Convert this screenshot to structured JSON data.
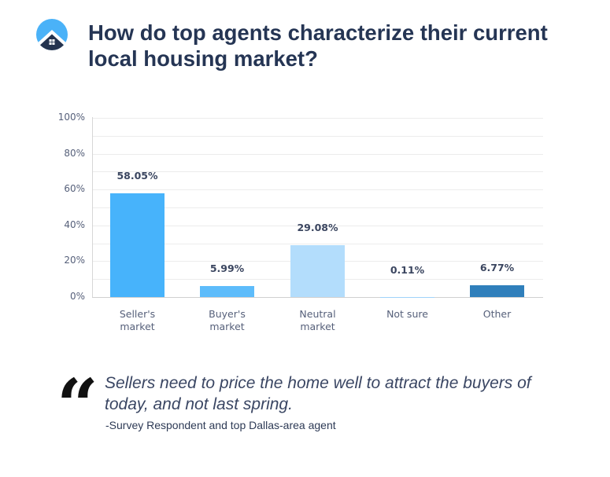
{
  "header": {
    "logo_icon": "house-circle-logo-icon",
    "title": "How do top agents characterize their current local housing market?"
  },
  "colors": {
    "title": "#253554",
    "sellers_bar": "#47b3fb",
    "buyers_bar": "#5dbcfb",
    "neutral_bar": "#b3ddfc",
    "not_sure_bar": "#9fd3fa",
    "other_bar": "#2f7fbb",
    "logo_sky": "#4ab2f8",
    "logo_house": "#24334f"
  },
  "chart_data": {
    "type": "bar",
    "title": "How do top agents characterize their current local housing market?",
    "xlabel": "",
    "ylabel": "",
    "categories": [
      "Seller's market",
      "Buyer's market",
      "Neutral market",
      "Not sure",
      "Other"
    ],
    "values": [
      58.05,
      5.99,
      29.08,
      0.11,
      6.77
    ],
    "value_labels": [
      "58.05%",
      "5.99%",
      "29.08%",
      "0.11%",
      "6.77%"
    ],
    "ylim": [
      0,
      100
    ],
    "yticks": [
      "100%",
      "80%",
      "60%",
      "40%",
      "20%",
      "0%"
    ],
    "ytick_values": [
      100,
      80,
      60,
      40,
      20,
      0
    ],
    "grid": true,
    "grid_step": 10,
    "legend": "none"
  },
  "categories_display": [
    "Seller's\nmarket",
    "Buyer's\nmarket",
    "Neutral\nmarket",
    "Not sure",
    "Other"
  ],
  "quote": {
    "icon": "quotation-mark-icon",
    "mark": "“",
    "text": "Sellers need to price the home well to attract the buyers of today, and not last spring.",
    "attribution": "-Survey Respondent and top Dallas-area agent"
  }
}
